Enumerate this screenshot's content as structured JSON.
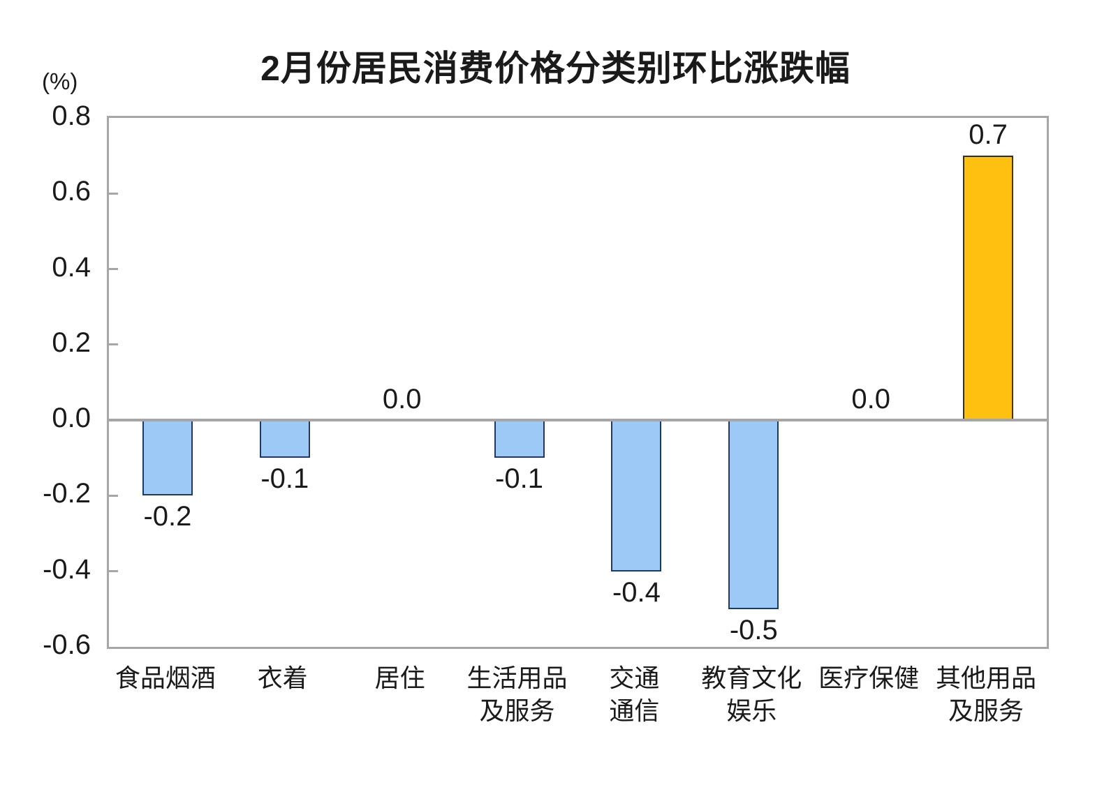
{
  "chart_data": {
    "type": "bar",
    "title": "2月份居民消费价格分类别环比涨跌幅",
    "unit_label": "(%)",
    "categories": [
      "食品烟酒",
      "衣着",
      "居住",
      "生活用品\n及服务",
      "交通\n通信",
      "教育文化\n娱乐",
      "医疗保健",
      "其他用品\n及服务"
    ],
    "values": [
      -0.2,
      -0.1,
      0.0,
      -0.1,
      -0.4,
      -0.5,
      0.0,
      0.7
    ],
    "value_labels": [
      "-0.2",
      "-0.1",
      "0.0",
      "-0.1",
      "-0.4",
      "-0.5",
      "0.0",
      "0.7"
    ],
    "highlight_index": 7,
    "xlabel": "",
    "ylabel": "(%)",
    "ylim": [
      -0.6,
      0.8
    ],
    "ytick_labels": [
      "0.8",
      "0.6",
      "0.4",
      "0.2",
      "0.0",
      "-0.2",
      "-0.4",
      "-0.6"
    ],
    "yticks": [
      0.8,
      0.6,
      0.4,
      0.2,
      0.0,
      -0.2,
      -0.4,
      -0.6
    ],
    "grid": false,
    "legend_position": "none",
    "colors": {
      "bar_fill": "#9CC9F5",
      "bar_border": "#1F3864",
      "highlight_fill": "#FFC010",
      "highlight_border": "#3F3000",
      "axis_border": "#A6A6A6",
      "zero_line": "#A6A6A6",
      "text": "#1A1A1A"
    }
  }
}
